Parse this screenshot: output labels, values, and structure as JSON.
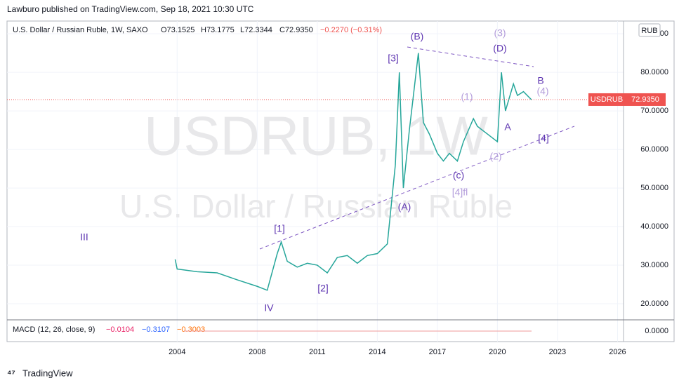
{
  "header": {
    "published": "Lawburo published on TradingView.com, Sep 18, 2021 10:30 UTC",
    "symbol": "U.S. Dollar / Russian Ruble, 1W, SAXO",
    "open": "O73.1525",
    "high": "H73.1775",
    "low": "L72.3344",
    "close": "C72.9350",
    "change": "−0.2270 (−0.31%)"
  },
  "watermark": {
    "line1": "USDRUB, 1W",
    "line2": "U.S. Dollar / Russian Ruble"
  },
  "chart_data": {
    "type": "line",
    "x": [
      2003.9,
      2004.0,
      2005.0,
      2006.0,
      2007.0,
      2008.0,
      2008.5,
      2009.0,
      2009.2,
      2009.5,
      2010.0,
      2010.5,
      2011.0,
      2011.5,
      2012.0,
      2012.5,
      2013.0,
      2013.5,
      2014.0,
      2014.5,
      2014.9,
      2015.0,
      2015.1,
      2015.3,
      2015.6,
      2016.05,
      2016.3,
      2016.6,
      2017.0,
      2017.3,
      2017.6,
      2018.0,
      2018.3,
      2018.8,
      2019.0,
      2019.5,
      2020.0,
      2020.2,
      2020.4,
      2020.8,
      2021.0,
      2021.3,
      2021.7
    ],
    "series": [
      {
        "name": "USDRUB",
        "color": "#26a69a",
        "values": [
          31.5,
          29.0,
          28.3,
          28.0,
          26.2,
          24.5,
          23.5,
          33.0,
          36.0,
          31.0,
          29.5,
          30.5,
          30.0,
          28.0,
          32.0,
          32.5,
          30.5,
          32.5,
          33.0,
          35.5,
          56.0,
          68.0,
          80.0,
          50.0,
          65.0,
          85.0,
          67.0,
          64.0,
          59.0,
          57.0,
          59.0,
          57.0,
          62.0,
          68.0,
          66.0,
          64.0,
          62.0,
          80.0,
          70.0,
          77.0,
          74.0,
          75.0,
          72.9
        ]
      }
    ],
    "xlim": [
      1995.5,
      2026.3
    ],
    "xticks": [
      2004,
      2008,
      2011,
      2014,
      2017,
      2020,
      2023,
      2026
    ],
    "ylim": [
      16,
      93.3
    ],
    "yticks": [
      {
        "value": 20,
        "label": "20.0000"
      },
      {
        "value": 30,
        "label": "30.0000"
      },
      {
        "value": 40,
        "label": "40.0000"
      },
      {
        "value": 50,
        "label": "50.0000"
      },
      {
        "value": 60,
        "label": "60.0000"
      },
      {
        "value": 70,
        "label": "70.0000"
      },
      {
        "value": 80,
        "label": "80.0000"
      },
      {
        "value": 90,
        "label": "90.0000"
      }
    ],
    "grid": true,
    "currency": "RUB",
    "last_price": {
      "value": 72.935,
      "label": "72.9350",
      "symbol": "USDRUB",
      "color": "#ef5350"
    },
    "annotations": [
      {
        "text": "[3]",
        "color": "#5e35b1"
      },
      {
        "text": "(B)",
        "color": "#5e35b1"
      },
      {
        "text": "(3)",
        "color": "#b39ddb"
      },
      {
        "text": "(D)",
        "color": "#5e35b1"
      },
      {
        "text": "B",
        "color": "#5e35b1"
      },
      {
        "text": "(4)",
        "color": "#b39ddb"
      },
      {
        "text": "(1)",
        "color": "#b39ddb"
      },
      {
        "text": "A",
        "color": "#5e35b1"
      },
      {
        "text": "[4]",
        "color": "#5e35b1"
      },
      {
        "text": "(2)",
        "color": "#b39ddb"
      },
      {
        "text": "(c)",
        "color": "#5e35b1"
      },
      {
        "text": "[4]fl",
        "color": "#b39ddb"
      },
      {
        "text": "(A)",
        "color": "#5e35b1"
      },
      {
        "text": "[1]",
        "color": "#5e35b1"
      },
      {
        "text": "III",
        "color": "#5e35b1"
      },
      {
        "text": "[2]",
        "color": "#5e35b1"
      },
      {
        "text": "IV",
        "color": "#5e35b1"
      }
    ]
  },
  "macd": {
    "title": "MACD (12, 26, close, 9)",
    "histogram": "−0.0104",
    "macd": "−0.3107",
    "signal": "−0.3003",
    "ylim": [
      -1,
      1
    ],
    "yticks": [
      {
        "value": 0,
        "label": "0.0000"
      }
    ]
  },
  "footer": {
    "brand": "TradingView"
  }
}
